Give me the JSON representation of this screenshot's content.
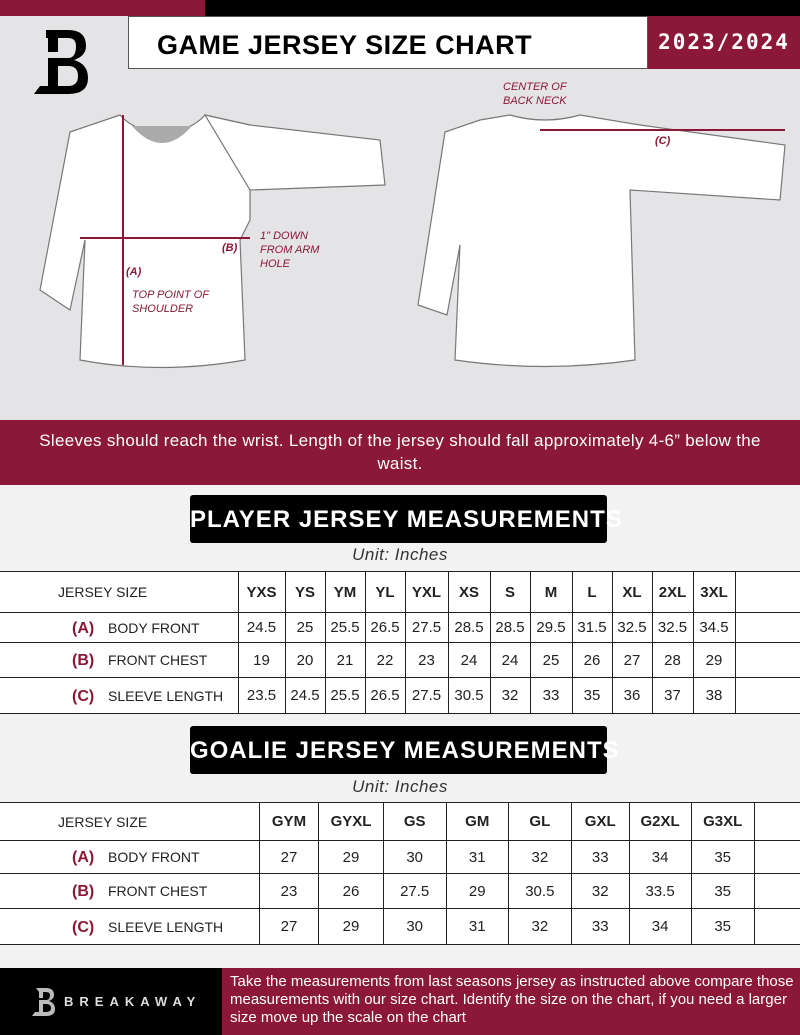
{
  "header": {
    "title": "GAME JERSEY SIZE CHART",
    "season": "2023/2024",
    "brand": "BREAKAWAY"
  },
  "diagram": {
    "center_back_neck": "CENTER OF BACK NECK",
    "label_a": "(A)",
    "label_b": "(B)",
    "label_c": "(C)",
    "down_note": "1\" DOWN FROM ARM HOLE",
    "shoulder_note": "TOP POINT OF SHOULDER"
  },
  "band_text": "Sleeves should reach the wrist. Length of the jersey should fall approximately 4-6” below the waist.",
  "player": {
    "title": "PLAYER JERSEY MEASUREMENTS",
    "unit": "Unit: Inches",
    "size_header": "JERSEY SIZE",
    "sizes": [
      "YXS",
      "YS",
      "YM",
      "YL",
      "YXL",
      "XS",
      "S",
      "M",
      "L",
      "XL",
      "2XL",
      "3XL"
    ],
    "rows": [
      {
        "key": "(A)",
        "label": "BODY FRONT",
        "values": [
          "24.5",
          "25",
          "25.5",
          "26.5",
          "27.5",
          "28.5",
          "28.5",
          "29.5",
          "31.5",
          "32.5",
          "32.5",
          "34.5"
        ]
      },
      {
        "key": "(B)",
        "label": "FRONT CHEST",
        "values": [
          "19",
          "20",
          "21",
          "22",
          "23",
          "24",
          "24",
          "25",
          "26",
          "27",
          "28",
          "29"
        ]
      },
      {
        "key": "(C)",
        "label": "SLEEVE LENGTH",
        "values": [
          "23.5",
          "24.5",
          "25.5",
          "26.5",
          "27.5",
          "30.5",
          "32",
          "33",
          "35",
          "36",
          "37",
          "38"
        ]
      }
    ]
  },
  "goalie": {
    "title": "GOALIE JERSEY MEASUREMENTS",
    "unit": "Unit: Inches",
    "size_header": "JERSEY SIZE",
    "sizes": [
      "GYM",
      "GYXL",
      "GS",
      "GM",
      "GL",
      "GXL",
      "G2XL",
      "G3XL"
    ],
    "rows": [
      {
        "key": "(A)",
        "label": "BODY FRONT",
        "values": [
          "27",
          "29",
          "30",
          "31",
          "32",
          "33",
          "34",
          "35"
        ]
      },
      {
        "key": "(B)",
        "label": "FRONT CHEST",
        "values": [
          "23",
          "26",
          "27.5",
          "29",
          "30.5",
          "32",
          "33.5",
          "35"
        ]
      },
      {
        "key": "(C)",
        "label": "SLEEVE LENGTH",
        "values": [
          "27",
          "29",
          "30",
          "31",
          "32",
          "33",
          "34",
          "35"
        ]
      }
    ]
  },
  "footer_text": "Take the measurements from last seasons jersey as instructed above compare those measurements  with our size chart. Identify the size on the chart, if you need a larger size move up the scale on the chart",
  "colors": {
    "accent": "#8a1836",
    "dark": "#000000",
    "background": "#e4e4e6"
  }
}
